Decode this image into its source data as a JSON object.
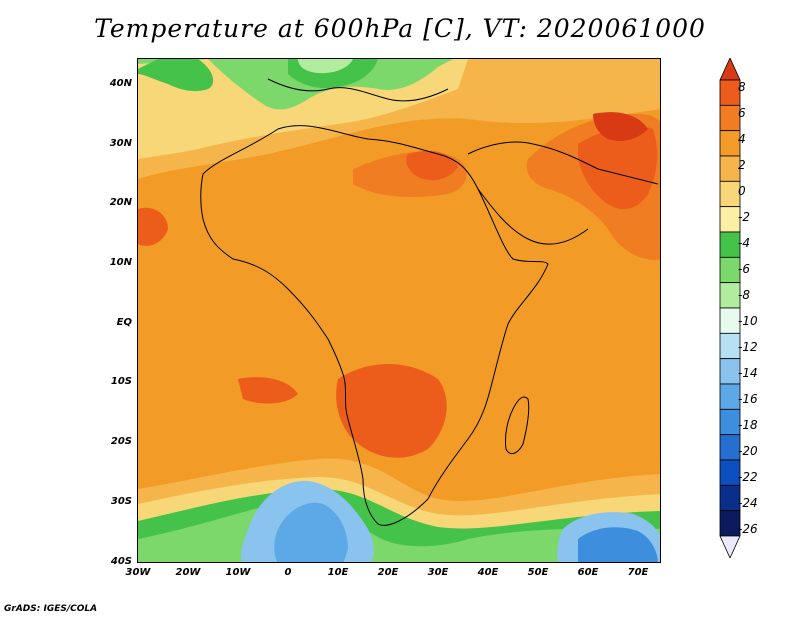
{
  "title": "Temperature at 600hPa [C], VT: 2020061000",
  "credit": "GrADS: IGES/COLA",
  "map": {
    "lon_range": [
      -30,
      75
    ],
    "lat_range": [
      -40,
      45
    ],
    "units": "C",
    "lat_labels": [
      "40N",
      "30N",
      "20N",
      "10N",
      "EQ",
      "10S",
      "20S",
      "30S",
      "40S"
    ],
    "lon_labels": [
      "30W",
      "20W",
      "10W",
      "0",
      "10E",
      "20E",
      "30E",
      "40E",
      "50E",
      "60E",
      "70E"
    ]
  },
  "colorbar": {
    "labels": [
      "8",
      "6",
      "4",
      "2",
      "0",
      "-2",
      "-4",
      "-6",
      "-8",
      "-10",
      "-12",
      "-14",
      "-16",
      "-18",
      "-20",
      "-22",
      "-24",
      "-26"
    ],
    "colors": [
      "#d83a14",
      "#ec5d1c",
      "#f07d22",
      "#f29b26",
      "#f6b54b",
      "#f7d778",
      "#fbeea5",
      "#45c24a",
      "#7cd86a",
      "#b2ec9e",
      "#e6fbee",
      "#b7e0f5",
      "#8ac4ee",
      "#5da8e6",
      "#3d8edc",
      "#246fcf",
      "#0d4fbf",
      "#0a2f8a",
      "#0b1b5e",
      "#e9ebfa"
    ]
  },
  "colors": {
    "warm_max": "#d83a14",
    "hot": "#ec5d1c",
    "warm": "#f07d22",
    "base": "#f29b26",
    "mild": "#f6b54b",
    "cool_green": "#45c24a",
    "cold_blue": "#5da8e6"
  }
}
